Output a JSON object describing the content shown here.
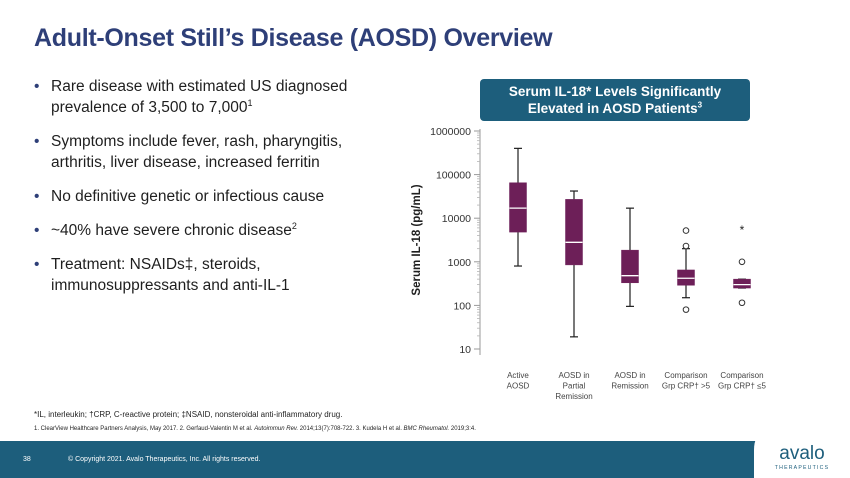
{
  "slide": {
    "title": "Adult-Onset Still’s Disease (AOSD) Overview",
    "page_number": "38",
    "copyright": "© Copyright 2021. Avalo Therapeutics, Inc. All rights reserved.",
    "logo_text": "avalo",
    "logo_subtext": "THERAPEUTICS"
  },
  "bullets": [
    {
      "text": "Rare disease with estimated US diagnosed prevalence of 3,500 to 7,000",
      "sup": "1"
    },
    {
      "text": "Symptoms include fever, rash, pharyngitis, arthritis, liver disease, increased ferritin",
      "sup": ""
    },
    {
      "text": "No definitive genetic or infectious cause",
      "sup": ""
    },
    {
      "text": "~40% have severe chronic disease",
      "sup": "2"
    },
    {
      "text": "Treatment: NSAIDs‡, steroids, immunosuppressants and anti-IL-1",
      "sup": ""
    }
  ],
  "callout": {
    "line1": "Serum IL-18* Levels Significantly",
    "line2": "Elevated in AOSD Patients",
    "sup": "3"
  },
  "footnote": "*IL, interleukin; †CRP, C-reactive protein; ‡NSAID, nonsteroidal anti-inflammatory drug.",
  "references": {
    "part1": "1. ClearView Healthcare Partners Analysis, May 2017. 2. Gerfaud-Valentin M et al. ",
    "journal1": "Autoimmun Rev.",
    "part2": " 2014;13(7):708-722. 3. Kudela H et al. ",
    "journal2": "BMC Rheumatol.",
    "part3": " 2019;3:4."
  },
  "colors": {
    "title": "#2e3f78",
    "box_fill": "#6d1f58",
    "median_line": "#ffffff",
    "banner": "#1d5e7c"
  },
  "chart_data": {
    "type": "box",
    "ylabel": "Serum IL-18 (pg/mL)",
    "yscale": "log",
    "ylim": [
      10,
      1000000
    ],
    "yticks": [
      "1000000",
      "100000",
      "10000",
      "1000",
      "100",
      "10"
    ],
    "ytick_values": [
      1000000,
      100000,
      10000,
      1000,
      100,
      10
    ],
    "categories": [
      [
        "Active",
        "AOSD"
      ],
      [
        "AOSD in",
        "Partial",
        "Remission"
      ],
      [
        "AOSD in",
        "Remission"
      ],
      [
        "Comparison",
        "Grp CRP† >5"
      ],
      [
        "Comparison",
        "Grp CRP† ≤5"
      ]
    ],
    "boxes": [
      {
        "whisker_low": 800,
        "q1": 4800,
        "median": 17000,
        "q3": 65000,
        "whisker_high": 400000,
        "outliers": [],
        "marker": ""
      },
      {
        "whisker_low": 19,
        "q1": 850,
        "median": 2800,
        "q3": 27000,
        "whisker_high": 42000,
        "outliers": [],
        "marker": ""
      },
      {
        "whisker_low": 95,
        "q1": 330,
        "median": 480,
        "q3": 1850,
        "whisker_high": 17000,
        "outliers": [],
        "marker": ""
      },
      {
        "whisker_low": 150,
        "q1": 290,
        "median": 420,
        "q3": 650,
        "whisker_high": 2000,
        "outliers": [
          80,
          2300,
          5200
        ],
        "marker": ""
      },
      {
        "whisker_low": 250,
        "q1": 250,
        "median": 300,
        "q3": 400,
        "whisker_high": 400,
        "outliers": [
          115,
          1000
        ],
        "marker": "*"
      }
    ]
  }
}
